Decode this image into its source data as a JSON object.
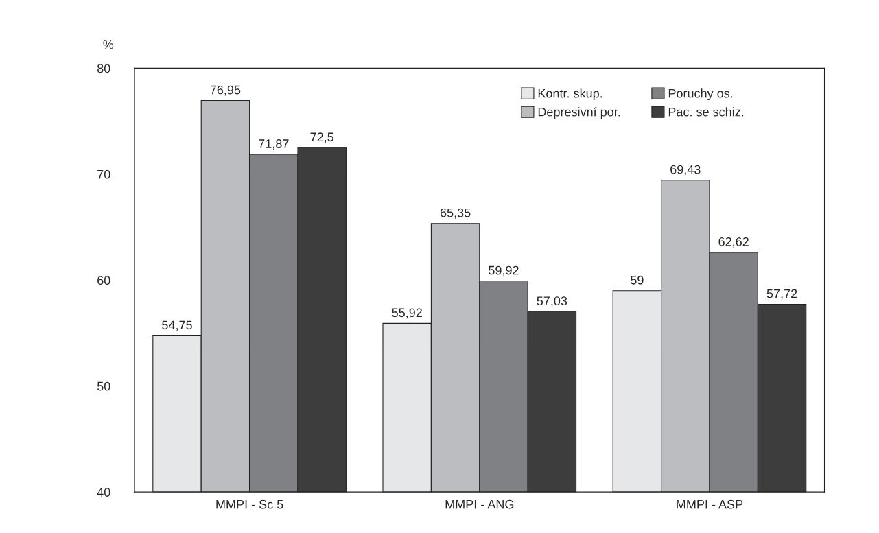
{
  "chart_data": {
    "type": "bar",
    "ylabel": "%",
    "categories": [
      "MMPI - Sc 5",
      "MMPI - ANG",
      "MMPI - ASP"
    ],
    "series": [
      {
        "name": "Kontr. skup.",
        "color": "#e6e7e9",
        "values": [
          54.75,
          55.92,
          59
        ],
        "value_labels": [
          "54,75",
          "55,92",
          "59"
        ]
      },
      {
        "name": "Depresivní por.",
        "color": "#bcbdc1",
        "values": [
          76.95,
          65.35,
          69.43
        ],
        "value_labels": [
          "76,95",
          "65,35",
          "69,43"
        ]
      },
      {
        "name": "Poruchy os.",
        "color": "#808184",
        "values": [
          71.87,
          59.92,
          62.62
        ],
        "value_labels": [
          "71,87",
          "59,92",
          "62,62"
        ]
      },
      {
        "name": "Pac. se schiz.",
        "color": "#3d3d3d",
        "values": [
          72.5,
          57.03,
          57.72
        ],
        "value_labels": [
          "72,5",
          "57,03",
          "57,72"
        ]
      }
    ],
    "ylim": [
      40,
      80
    ],
    "yticks": [
      40,
      50,
      60,
      70,
      80
    ],
    "grid": false,
    "legend": "top right"
  }
}
